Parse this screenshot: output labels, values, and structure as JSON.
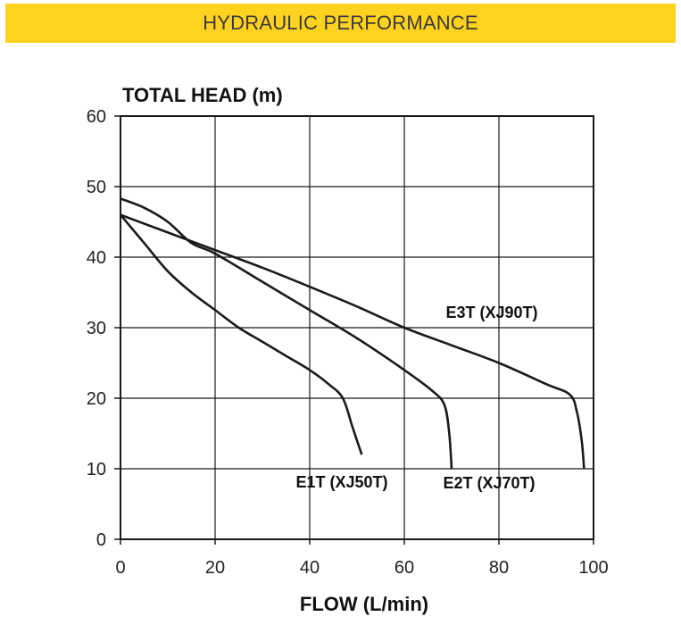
{
  "header": {
    "title": "HYDRAULIC PERFORMANCE",
    "background": "#FFD21F"
  },
  "chart_data": {
    "type": "line",
    "title": "",
    "xlabel": "FLOW (L/min)",
    "ylabel": "TOTAL HEAD (m)",
    "xlim": [
      0,
      100
    ],
    "ylim": [
      0,
      60
    ],
    "xticks": [
      0,
      20,
      40,
      60,
      80,
      100
    ],
    "yticks": [
      0,
      10,
      20,
      30,
      40,
      50,
      60
    ],
    "grid": true,
    "line_color": "#1a1a1a",
    "series": [
      {
        "name": "E1T (XJ50T)",
        "x": [
          0,
          5,
          10,
          15,
          20,
          25,
          30,
          35,
          40,
          44,
          47,
          49,
          50,
          51
        ],
        "y": [
          46,
          42,
          38,
          35,
          32.5,
          30,
          28,
          26,
          24,
          22,
          20,
          16,
          14,
          12
        ]
      },
      {
        "name": "E2T (XJ70T)",
        "x": [
          0,
          5,
          10,
          15,
          20,
          30,
          40,
          50,
          60,
          66,
          68.5,
          69.5,
          70
        ],
        "y": [
          48.3,
          47,
          45,
          42,
          40.5,
          36.5,
          32.5,
          28.5,
          24,
          21,
          19,
          15,
          10
        ]
      },
      {
        "name": "E3T (XJ90T)",
        "x": [
          0,
          10,
          20,
          30,
          40,
          50,
          60,
          70,
          80,
          90,
          95,
          96.5,
          97.5,
          98
        ],
        "y": [
          46,
          43.5,
          41,
          38.5,
          35.8,
          33,
          30,
          27.5,
          25,
          22,
          20.5,
          18,
          14,
          10
        ]
      }
    ]
  }
}
